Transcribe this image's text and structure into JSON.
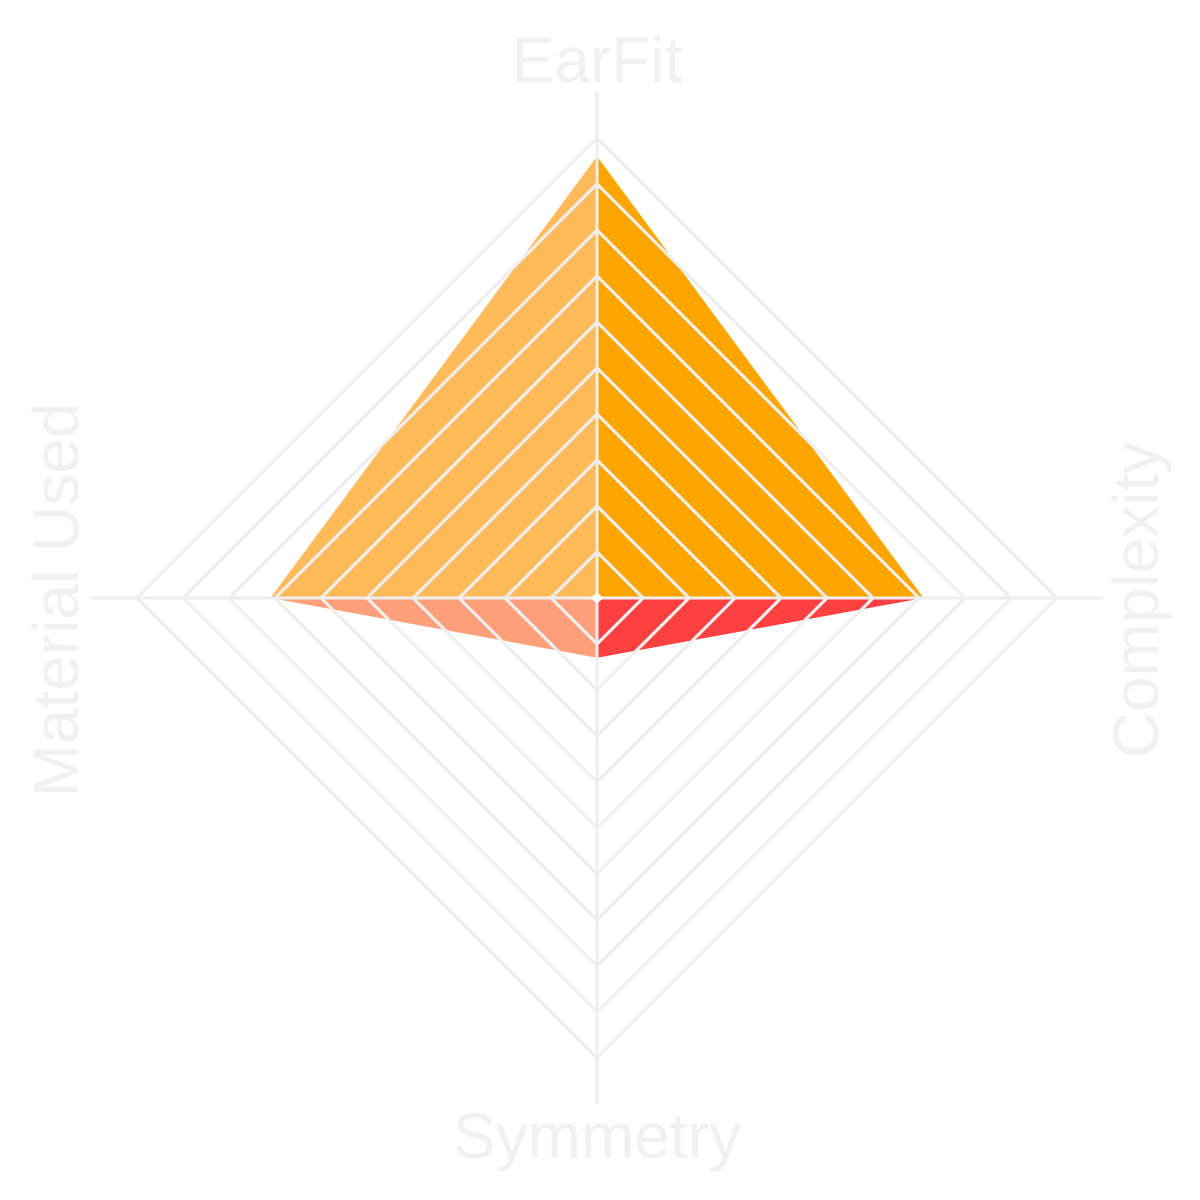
{
  "chart_data": {
    "type": "radar",
    "title": "",
    "axes": [
      "EarFit",
      "Complexity",
      "Symmetry",
      "Material Used"
    ],
    "range": [
      0,
      10
    ],
    "rings": 10,
    "grid": true,
    "legend": "none",
    "values": [
      9.6,
      7.1,
      1.3,
      7.1
    ]
  },
  "colors": {
    "quadrant_earfit_complexity": "#ffa500",
    "quadrant_complexity_symmetry": "#ff4040",
    "quadrant_symmetry_material": "#ffa07a",
    "quadrant_material_earfit": "#ffbb5a",
    "grid": "#eeeeee",
    "fill_stripes": "#ffffff",
    "label": "#f1f1f1"
  }
}
